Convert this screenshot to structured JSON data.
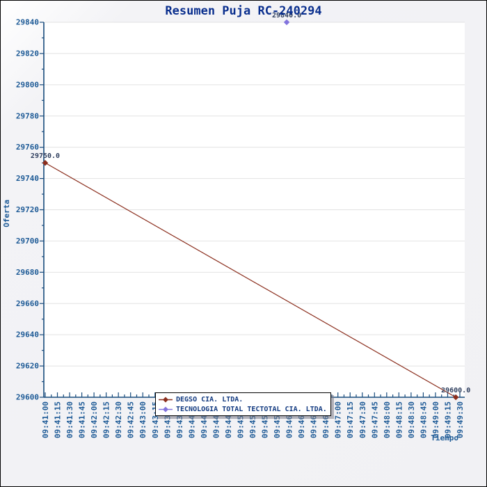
{
  "chart_data": {
    "type": "line",
    "title": "Resumen Puja RC-240294",
    "xlabel": "Tiempo",
    "ylabel": "Oferta",
    "ylim": [
      29600,
      29840
    ],
    "y_tick_interval": 20,
    "y_minor_tick_interval": 10,
    "y_tick_labels": [
      "29600",
      "29620",
      "29640",
      "29660",
      "29680",
      "29700",
      "29720",
      "29740",
      "29760",
      "29780",
      "29800",
      "29820",
      "29840"
    ],
    "x_tick_labels": [
      "09:41:00",
      "09:41:15",
      "09:41:30",
      "09:41:45",
      "09:42:00",
      "09:42:15",
      "09:42:30",
      "09:42:45",
      "09:43:00",
      "09:43:15",
      "09:43:30",
      "09:43:45",
      "09:44:00",
      "09:44:15",
      "09:44:30",
      "09:44:45",
      "09:45:00",
      "09:45:15",
      "09:45:30",
      "09:45:45",
      "09:46:00",
      "09:46:15",
      "09:46:30",
      "09:46:45",
      "09:47:00",
      "09:47:15",
      "09:47:30",
      "09:47:45",
      "09:48:00",
      "09:48:15",
      "09:48:30",
      "09:48:45",
      "09:49:00",
      "09:49:15",
      "09:49:30"
    ],
    "grid": "horizontal-major-only",
    "legend_position": "bottom-center",
    "series": [
      {
        "name": "DEGSO CIA. LTDA.",
        "color": "#8b2e1d",
        "marker": "diamond",
        "points": [
          {
            "time": "09:41:00",
            "value": 29750.0,
            "annotation": "29750.0"
          },
          {
            "time": "09:49:25",
            "value": 29600.0,
            "annotation": "29600.0"
          }
        ]
      },
      {
        "name": "TECNOLOGIA TOTAL TECTOTAL CIA. LTDA.",
        "color": "#8273dd",
        "marker": "diamond",
        "points": [
          {
            "time": "09:45:57",
            "value": 29840.0,
            "annotation": "29840.0"
          }
        ]
      }
    ],
    "colors": {
      "title": "#0a2f8e",
      "tick_label": "#1d5a96",
      "axis": "#164a7c",
      "grid": "#e2e2e2",
      "annotation": "#2e3e5e",
      "legend_text": "#123a80",
      "plot_bg": "#ffffff",
      "chart_bg": "#f1f1f4",
      "frame_border": "#000000"
    }
  }
}
